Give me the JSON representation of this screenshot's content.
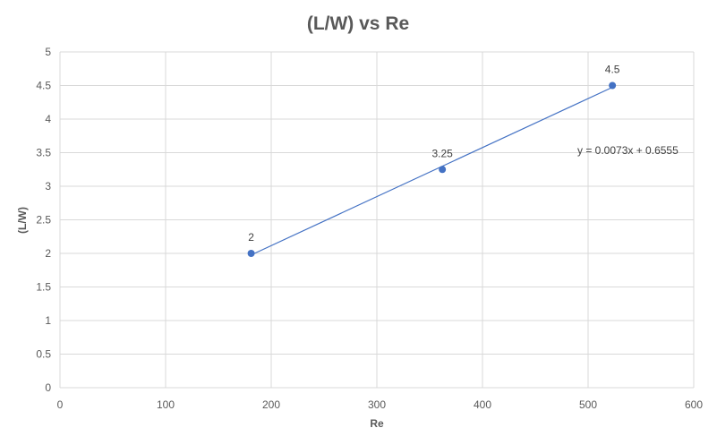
{
  "chart_data": {
    "type": "scatter",
    "title": "(L/W) vs Re",
    "xlabel": "Re",
    "ylabel": "(L/W)",
    "xlim": [
      0,
      600
    ],
    "ylim": [
      0,
      5
    ],
    "xticks": [
      0,
      100,
      200,
      300,
      400,
      500,
      600
    ],
    "yticks": [
      0,
      0.5,
      1,
      1.5,
      2,
      2.5,
      3,
      3.5,
      4,
      4.5,
      5
    ],
    "ytick_labels": [
      "0",
      "0.5",
      "1",
      "1.5",
      "2",
      "2.5",
      "3",
      "3.5",
      "4",
      "4.5",
      "5"
    ],
    "grid": true,
    "series": [
      {
        "x": [
          181,
          362,
          523
        ],
        "y": [
          2,
          3.25,
          4.5
        ],
        "labels": [
          "2",
          "3.25",
          "4.5"
        ],
        "color": "#4472c4"
      }
    ],
    "trendline": {
      "equation": "y = 0.0073x + 0.6555",
      "slope": 0.0073,
      "intercept": 0.6555,
      "color": "#4472c4"
    }
  }
}
